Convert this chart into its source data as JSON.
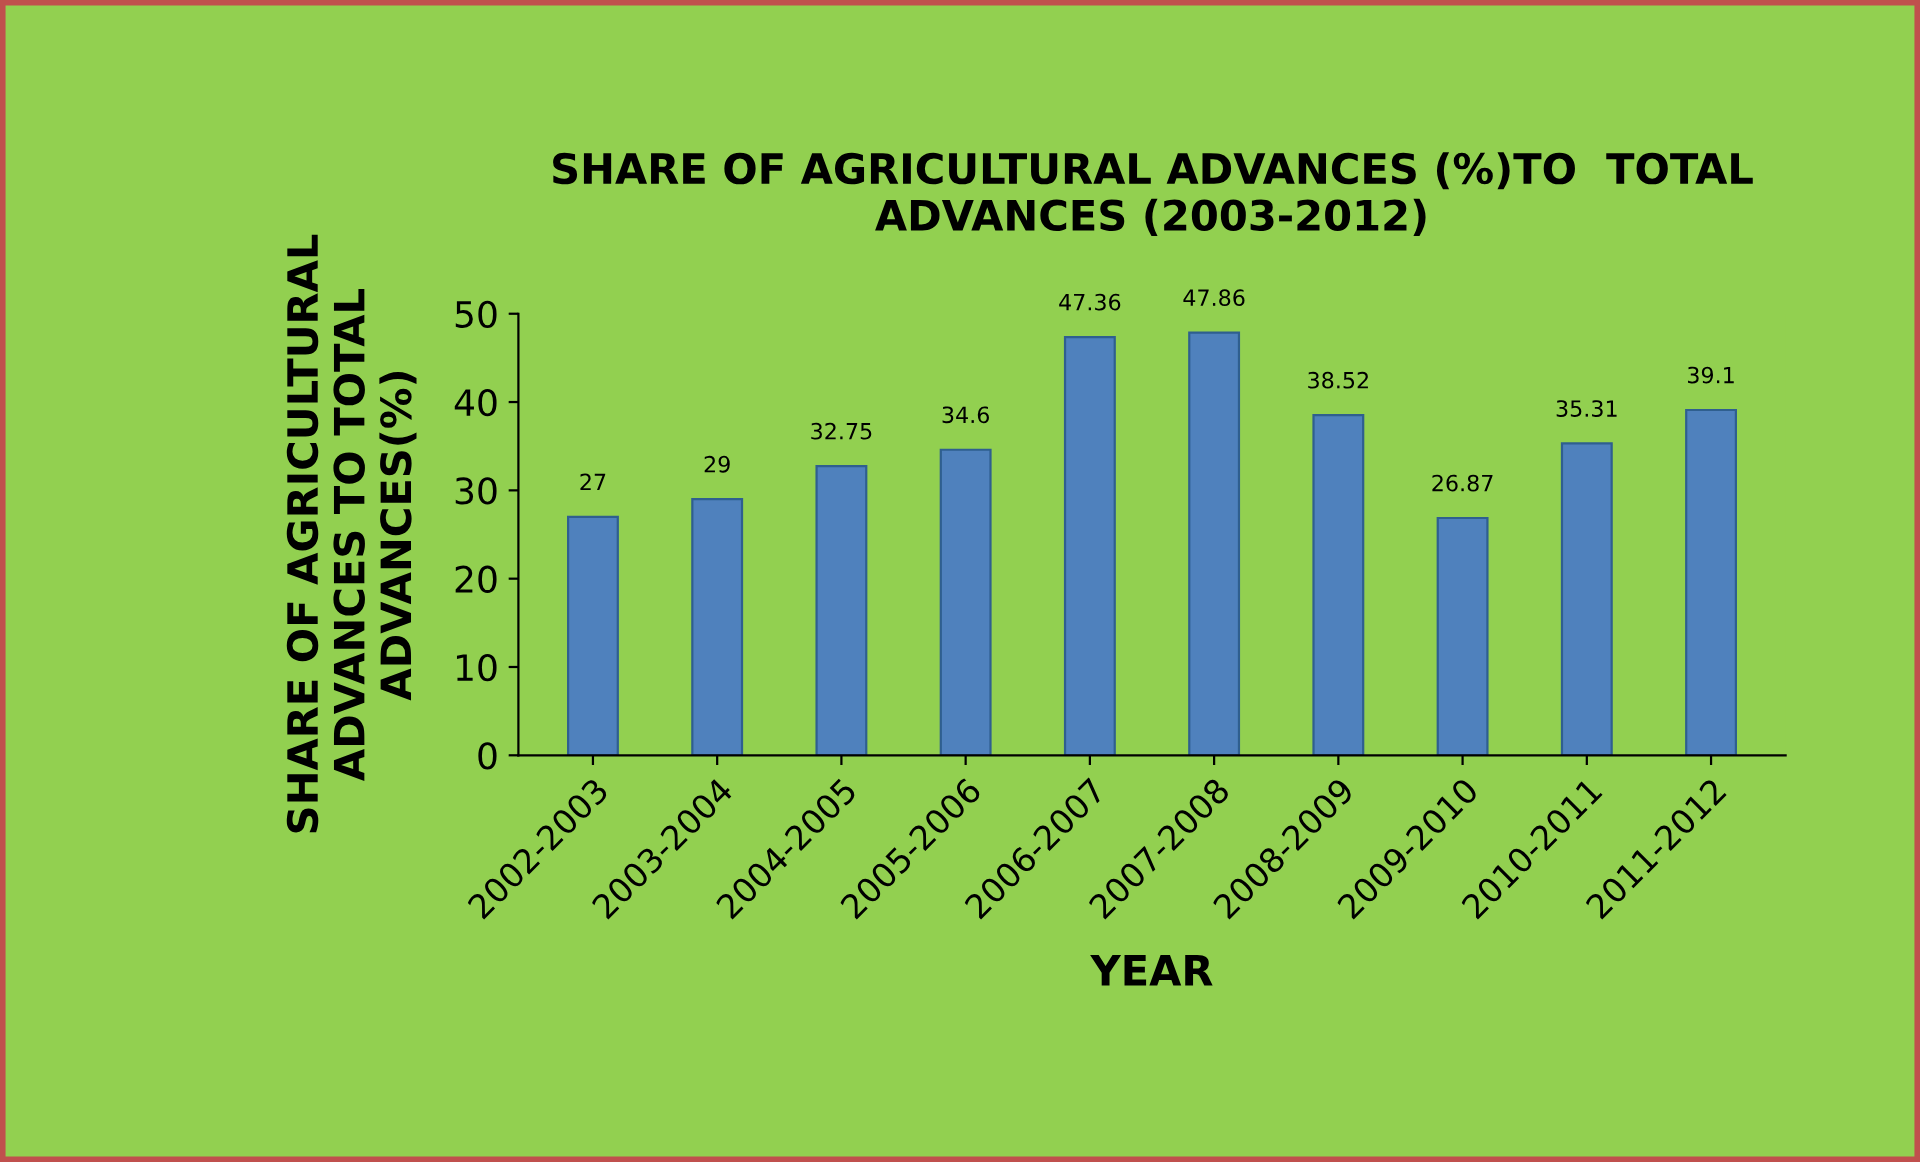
{
  "chart_data": {
    "type": "bar",
    "title": "SHARE OF AGRICULTURAL ADVANCES (%)TO  TOTAL\nADVANCES (2003-2012)",
    "xlabel": "YEAR",
    "ylabel": "SHARE OF AGRICULTURAL\nADVANCES TO TOTAL\nADVANCES(%)",
    "categories": [
      "2002-2003",
      "2003-2004",
      "2004-2005",
      "2005-2006",
      "2006-2007",
      "2007-2008",
      "2008-2009",
      "2009-2010",
      "2010-2011",
      "2011-2012"
    ],
    "values": [
      27,
      29,
      32.75,
      34.6,
      47.36,
      47.86,
      38.52,
      26.87,
      35.31,
      39.1
    ],
    "color": "#4f81bd",
    "ylim": [
      0,
      50
    ],
    "yticks": [
      0,
      10,
      20,
      30,
      40,
      50
    ],
    "data_labels": true,
    "grid": false,
    "legend": false
  }
}
